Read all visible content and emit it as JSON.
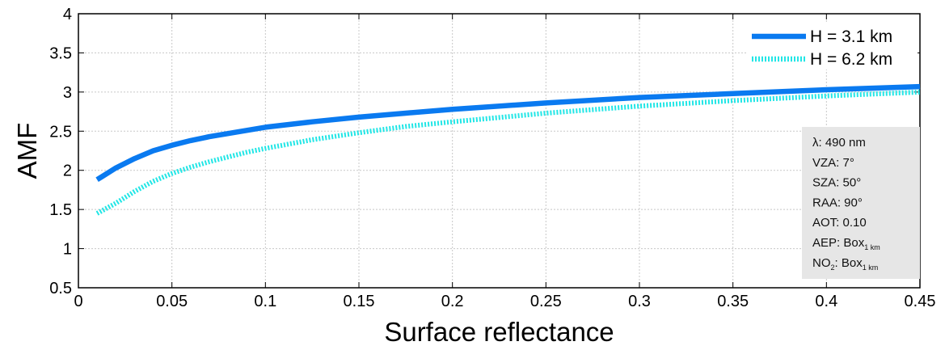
{
  "chart_data": {
    "type": "line",
    "title": "",
    "xlabel": "Surface reflectance",
    "ylabel": "AMF",
    "xlim": [
      0,
      0.45
    ],
    "ylim": [
      0.5,
      4
    ],
    "grid": true,
    "legend_position": "top-right",
    "x_ticks": [
      "0",
      "0.05",
      "0.1",
      "0.15",
      "0.2",
      "0.25",
      "0.3",
      "0.35",
      "0.4",
      "0.45"
    ],
    "y_ticks": [
      "0.5",
      "1",
      "1.5",
      "2",
      "2.5",
      "3",
      "3.5",
      "4"
    ],
    "x": [
      0.01,
      0.02,
      0.03,
      0.04,
      0.05,
      0.06,
      0.07,
      0.08,
      0.09,
      0.1,
      0.125,
      0.15,
      0.175,
      0.2,
      0.25,
      0.3,
      0.35,
      0.4,
      0.45
    ],
    "series": [
      {
        "name": "H = 3.1 km",
        "color": "#0a7af0",
        "style": "solid",
        "values": [
          1.88,
          2.03,
          2.15,
          2.25,
          2.32,
          2.38,
          2.43,
          2.47,
          2.51,
          2.55,
          2.62,
          2.68,
          2.73,
          2.78,
          2.86,
          2.93,
          2.98,
          3.03,
          3.07
        ]
      },
      {
        "name": "H = 6.2 km",
        "color": "#22e6e6",
        "style": "dotted",
        "values": [
          1.45,
          1.58,
          1.73,
          1.86,
          1.96,
          2.04,
          2.11,
          2.17,
          2.23,
          2.28,
          2.39,
          2.48,
          2.56,
          2.62,
          2.73,
          2.82,
          2.89,
          2.95,
          3.0
        ]
      }
    ],
    "annotation": {
      "lines": [
        {
          "text": "λ: 490 nm"
        },
        {
          "text": "VZA: 7°"
        },
        {
          "text": "SZA: 50°"
        },
        {
          "text": "RAA: 90°"
        },
        {
          "text": "AOT: 0.10"
        },
        {
          "text": "AEP: Box",
          "sub": "1 km"
        },
        {
          "pre": "NO",
          "presub": "2",
          "text": ": Box",
          "sub": "1 km"
        }
      ]
    }
  }
}
